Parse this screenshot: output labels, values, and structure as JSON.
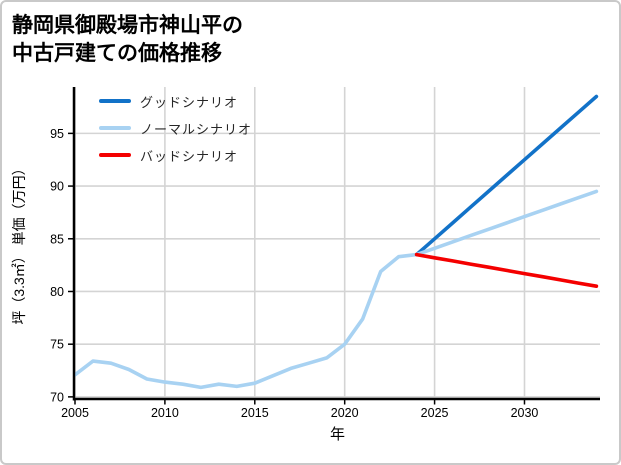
{
  "title": {
    "line1": "静岡県御殿場市神山平の",
    "line2": "中古戸建ての価格推移"
  },
  "legend": {
    "items": [
      {
        "label": "グッドシナリオ",
        "color": "#1272c8"
      },
      {
        "label": "ノーマルシナリオ",
        "color": "#a8d2f2"
      },
      {
        "label": "バッドシナリオ",
        "color": "#f40000"
      }
    ]
  },
  "chart_data": {
    "type": "line",
    "title": "静岡県御殿場市神山平の中古戸建ての価格推移",
    "xlabel": "年",
    "ylabel": "坪（3.3㎡） 単価（万円）",
    "xticks": [
      2005,
      2010,
      2015,
      2020,
      2025,
      2030
    ],
    "yticks": [
      70,
      75,
      80,
      85,
      90,
      95
    ],
    "xlim": [
      2005,
      2034.2
    ],
    "ylim": [
      69.8,
      99.4
    ],
    "grid": true,
    "legend_position": "upper-left",
    "colors": {
      "grid": "#d4d4d4",
      "spine": "#000000",
      "tick_label": "#000000"
    },
    "series": [
      {
        "name": "グッドシナリオ",
        "color": "#1272c8",
        "x": [
          2024,
          2025,
          2026,
          2027,
          2028,
          2029,
          2030,
          2031,
          2032,
          2033,
          2034
        ],
        "values": [
          83.5,
          85.0,
          86.5,
          88.0,
          89.5,
          91.0,
          92.5,
          94.0,
          95.5,
          97.0,
          98.5
        ]
      },
      {
        "name": "ノーマルシナリオ",
        "color": "#a8d2f2",
        "x": [
          2005,
          2006,
          2007,
          2008,
          2009,
          2010,
          2011,
          2012,
          2013,
          2014,
          2015,
          2016,
          2017,
          2018,
          2019,
          2020,
          2021,
          2022,
          2023,
          2024,
          2025,
          2026,
          2027,
          2028,
          2029,
          2030,
          2031,
          2032,
          2033,
          2034
        ],
        "values": [
          72.1,
          73.4,
          73.2,
          72.6,
          71.7,
          71.4,
          71.2,
          70.9,
          71.2,
          71.0,
          71.3,
          72.0,
          72.7,
          73.2,
          73.7,
          75.0,
          77.4,
          81.9,
          83.3,
          83.5,
          84.1,
          84.7,
          85.3,
          85.9,
          86.5,
          87.1,
          87.7,
          88.3,
          88.9,
          89.5
        ]
      },
      {
        "name": "バッドシナリオ",
        "color": "#f40000",
        "x": [
          2024,
          2025,
          2026,
          2027,
          2028,
          2029,
          2030,
          2031,
          2032,
          2033,
          2034
        ],
        "values": [
          83.5,
          83.2,
          82.9,
          82.6,
          82.3,
          82.0,
          81.7,
          81.4,
          81.1,
          80.8,
          80.5
        ]
      }
    ]
  }
}
